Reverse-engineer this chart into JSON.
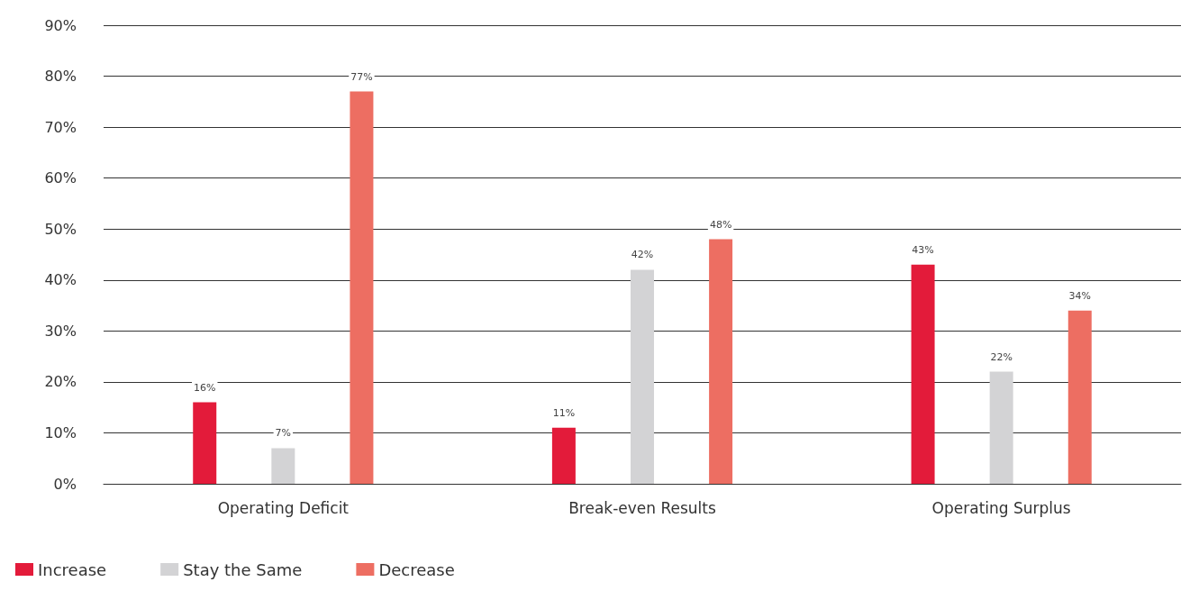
{
  "chart_data": {
    "type": "bar",
    "categories": [
      "Operating Deficit",
      "Break-even Results",
      "Operating Surplus"
    ],
    "series": [
      {
        "name": "Increase",
        "color": "#e31b3a",
        "values": [
          16,
          11,
          43
        ],
        "value_labels": [
          "16%",
          "11%",
          "43%"
        ]
      },
      {
        "name": "Stay the Same",
        "color": "#d3d3d5",
        "values": [
          7,
          42,
          22
        ],
        "value_labels": [
          "7%",
          "42%",
          "22%"
        ]
      },
      {
        "name": "Decrease",
        "color": "#ed6e62",
        "values": [
          77,
          48,
          34
        ],
        "value_labels": [
          "77%",
          "48%",
          "34%"
        ]
      }
    ],
    "ylim": [
      0,
      90
    ],
    "yticks": [
      {
        "value": 0,
        "label": "0%"
      },
      {
        "value": 10,
        "label": "10%"
      },
      {
        "value": 20,
        "label": "20%"
      },
      {
        "value": 30,
        "label": "30%"
      },
      {
        "value": 40,
        "label": "40%"
      },
      {
        "value": 50,
        "label": "50%"
      },
      {
        "value": 60,
        "label": "60%"
      },
      {
        "value": 70,
        "label": "70%"
      },
      {
        "value": 80,
        "label": "80%"
      },
      {
        "value": 90,
        "label": "90%"
      }
    ],
    "grid": "y",
    "legend": "bottom left"
  }
}
